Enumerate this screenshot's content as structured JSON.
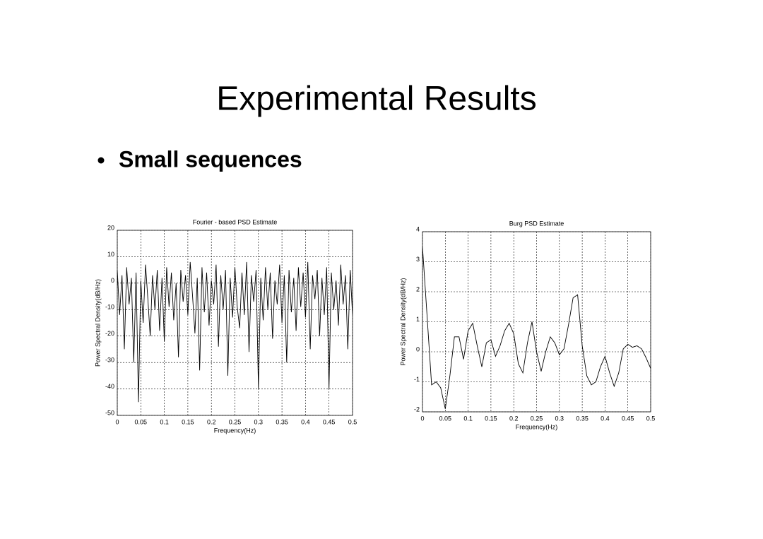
{
  "slide": {
    "title": "Experimental Results",
    "bullet": "Small sequences"
  },
  "chart_data": [
    {
      "type": "line",
      "title": "Fourier - based PSD Estimate",
      "xlabel": "Frequency(Hz)",
      "ylabel": "Power Spectral Density(dB/Hz)",
      "grid": true,
      "color": "#000000",
      "xlim": [
        0,
        0.5
      ],
      "ylim": [
        -50,
        20
      ],
      "xticks": [
        0,
        0.05,
        0.1,
        0.15,
        0.2,
        0.25,
        0.3,
        0.35,
        0.4,
        0.45,
        0.5
      ],
      "yticks": [
        -50,
        -40,
        -30,
        -20,
        -10,
        0,
        10,
        20
      ],
      "x": [
        0,
        0.005,
        0.01,
        0.015,
        0.02,
        0.025,
        0.03,
        0.035,
        0.04,
        0.045,
        0.05,
        0.055,
        0.06,
        0.065,
        0.07,
        0.075,
        0.08,
        0.085,
        0.09,
        0.095,
        0.1,
        0.105,
        0.11,
        0.115,
        0.12,
        0.125,
        0.13,
        0.135,
        0.14,
        0.145,
        0.15,
        0.155,
        0.16,
        0.165,
        0.17,
        0.175,
        0.18,
        0.185,
        0.19,
        0.195,
        0.2,
        0.205,
        0.21,
        0.215,
        0.22,
        0.225,
        0.23,
        0.235,
        0.24,
        0.245,
        0.25,
        0.255,
        0.26,
        0.265,
        0.27,
        0.275,
        0.28,
        0.285,
        0.29,
        0.295,
        0.3,
        0.305,
        0.31,
        0.315,
        0.32,
        0.325,
        0.33,
        0.335,
        0.34,
        0.345,
        0.35,
        0.355,
        0.36,
        0.365,
        0.37,
        0.375,
        0.38,
        0.385,
        0.39,
        0.395,
        0.4,
        0.405,
        0.41,
        0.415,
        0.42,
        0.425,
        0.43,
        0.435,
        0.44,
        0.445,
        0.45,
        0.455,
        0.46,
        0.465,
        0.47,
        0.475,
        0.48,
        0.485,
        0.49,
        0.495,
        0.5
      ],
      "values": [
        5,
        -12,
        3,
        -25,
        6,
        -8,
        2,
        -30,
        4,
        -45,
        1,
        -15,
        7,
        -6,
        -20,
        3,
        -10,
        5,
        -18,
        2,
        -22,
        6,
        -9,
        4,
        -14,
        0,
        -28,
        5,
        -7,
        3,
        -12,
        8,
        -5,
        -19,
        2,
        -33,
        6,
        -11,
        4,
        -16,
        1,
        -8,
        7,
        -24,
        3,
        -10,
        5,
        -35,
        2,
        -13,
        6,
        -9,
        -17,
        4,
        -12,
        8,
        -26,
        3,
        -7,
        5,
        -40,
        2,
        -14,
        6,
        -10,
        4,
        -21,
        1,
        -8,
        7,
        -15,
        3,
        -30,
        5,
        -11,
        2,
        -18,
        6,
        -9,
        4,
        -13,
        8,
        -25,
        3,
        -6,
        5,
        -20,
        2,
        -12,
        6,
        -40,
        4,
        -10,
        1,
        -16,
        7,
        -8,
        3,
        -25,
        5,
        -12
      ]
    },
    {
      "type": "line",
      "title": "Burg PSD Estimate",
      "xlabel": "Frequency(Hz)",
      "ylabel": "Power Spectral Density(dB/Hz)",
      "grid": true,
      "color": "#000000",
      "xlim": [
        0,
        0.5
      ],
      "ylim": [
        -2,
        4
      ],
      "xticks": [
        0,
        0.05,
        0.1,
        0.15,
        0.2,
        0.25,
        0.3,
        0.35,
        0.4,
        0.45,
        0.5
      ],
      "yticks": [
        -2,
        -1,
        0,
        1,
        2,
        3,
        4
      ],
      "x": [
        0,
        0.01,
        0.02,
        0.03,
        0.04,
        0.05,
        0.06,
        0.07,
        0.08,
        0.09,
        0.1,
        0.11,
        0.12,
        0.13,
        0.14,
        0.15,
        0.16,
        0.17,
        0.18,
        0.19,
        0.2,
        0.21,
        0.22,
        0.23,
        0.24,
        0.25,
        0.26,
        0.27,
        0.28,
        0.29,
        0.3,
        0.31,
        0.32,
        0.33,
        0.34,
        0.35,
        0.36,
        0.37,
        0.38,
        0.39,
        0.4,
        0.41,
        0.42,
        0.43,
        0.44,
        0.45,
        0.46,
        0.47,
        0.48,
        0.49,
        0.5
      ],
      "values": [
        3.5,
        1.2,
        -1.1,
        -1.0,
        -1.2,
        -1.9,
        -0.8,
        0.5,
        0.5,
        -0.25,
        0.7,
        0.95,
        0.2,
        -0.5,
        0.3,
        0.4,
        -0.15,
        0.2,
        0.7,
        0.95,
        0.6,
        -0.4,
        -0.7,
        0.3,
        1.0,
        0.0,
        -0.65,
        0.0,
        0.5,
        0.3,
        -0.1,
        0.1,
        0.9,
        1.8,
        1.9,
        0.2,
        -0.8,
        -1.1,
        -1.0,
        -0.5,
        -0.15,
        -0.7,
        -1.15,
        -0.7,
        0.1,
        0.25,
        0.15,
        0.2,
        0.1,
        -0.2,
        -0.55
      ]
    }
  ]
}
